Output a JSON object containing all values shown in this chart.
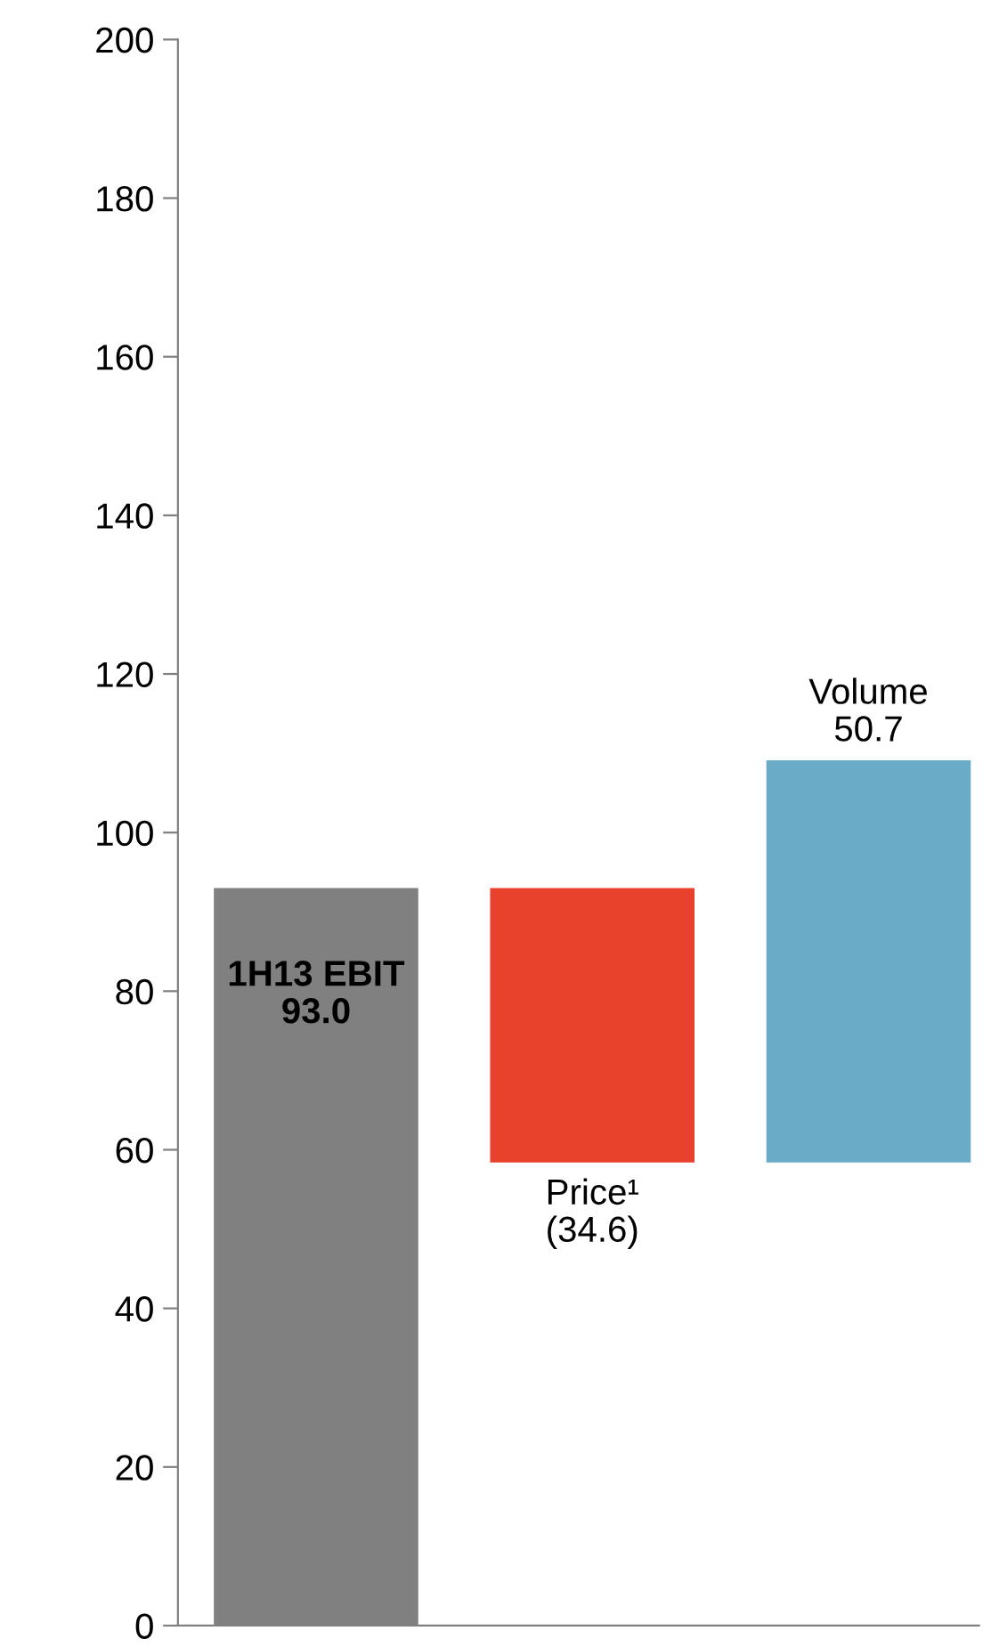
{
  "chart_data": {
    "type": "bar",
    "categories": [
      "1H13 EBIT",
      "Price¹",
      "Volume"
    ],
    "base": [
      0,
      58.4,
      58.4
    ],
    "values": [
      93.0,
      34.6,
      50.7
    ],
    "colors": [
      "#808080",
      "#e8412c",
      "#6aabc8"
    ],
    "value_labels": [
      "93.0",
      "(34.6)",
      "50.7"
    ],
    "ylim": [
      0,
      200
    ],
    "yticks": [
      0,
      20,
      40,
      60,
      80,
      100,
      120,
      140,
      160,
      180,
      200
    ],
    "grid": false,
    "legend": false
  }
}
